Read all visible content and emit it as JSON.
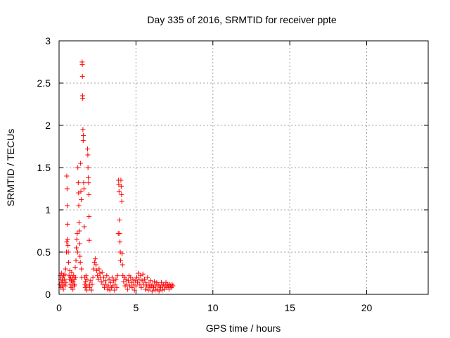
{
  "chart_data": {
    "type": "scatter",
    "title": "Day 335 of 2016, SRMTID for receiver ppte",
    "xlabel": "GPS time / hours",
    "ylabel": "SRMTID / TECUs",
    "xlim": [
      0,
      24
    ],
    "ylim": [
      0,
      3
    ],
    "xticks": [
      0,
      5,
      10,
      15,
      20
    ],
    "xtick_labels": [
      "0",
      "5",
      "10",
      "15",
      "20"
    ],
    "yticks": [
      0,
      0.5,
      1,
      1.5,
      2,
      2.5,
      3
    ],
    "ytick_labels": [
      "0",
      "0.5",
      "1",
      "1.5",
      "2",
      "2.5",
      "3"
    ],
    "grid": true,
    "marker": "+",
    "color": "#ff0000",
    "series": [
      {
        "name": "SRMTID",
        "points": [
          [
            0.05,
            0.12
          ],
          [
            0.08,
            0.22
          ],
          [
            0.1,
            0.18
          ],
          [
            0.12,
            0.08
          ],
          [
            0.15,
            0.25
          ],
          [
            0.18,
            0.14
          ],
          [
            0.2,
            0.1
          ],
          [
            0.22,
            0.2
          ],
          [
            0.25,
            0.16
          ],
          [
            0.28,
            0.06
          ],
          [
            0.3,
            0.22
          ],
          [
            0.32,
            0.12
          ],
          [
            0.35,
            0.18
          ],
          [
            0.38,
            0.24
          ],
          [
            0.4,
            0.1
          ],
          [
            0.42,
            0.3
          ],
          [
            0.45,
            0.14
          ],
          [
            0.48,
            0.5
          ],
          [
            0.5,
            0.62
          ],
          [
            0.5,
            1.4
          ],
          [
            0.52,
            1.25
          ],
          [
            0.53,
            1.05
          ],
          [
            0.55,
            0.83
          ],
          [
            0.56,
            0.65
          ],
          [
            0.58,
            0.58
          ],
          [
            0.6,
            0.5
          ],
          [
            0.62,
            0.38
          ],
          [
            0.65,
            0.22
          ],
          [
            0.68,
            0.18
          ],
          [
            0.7,
            0.28
          ],
          [
            0.72,
            0.12
          ],
          [
            0.75,
            0.2
          ],
          [
            0.78,
            0.08
          ],
          [
            0.8,
            0.16
          ],
          [
            0.82,
            0.26
          ],
          [
            0.85,
            0.12
          ],
          [
            0.88,
            0.2
          ],
          [
            0.9,
            0.06
          ],
          [
            0.92,
            0.15
          ],
          [
            0.95,
            0.22
          ],
          [
            0.98,
            0.1
          ],
          [
            1.0,
            0.18
          ],
          [
            1.02,
            0.12
          ],
          [
            1.05,
            0.32
          ],
          [
            1.08,
            0.2
          ],
          [
            1.1,
            0.4
          ],
          [
            1.12,
            0.55
          ],
          [
            1.15,
            0.65
          ],
          [
            1.18,
            0.72
          ],
          [
            1.2,
            0.5
          ],
          [
            1.22,
            1.5
          ],
          [
            1.25,
            1.32
          ],
          [
            1.27,
            1.2
          ],
          [
            1.28,
            1.05
          ],
          [
            1.3,
            0.85
          ],
          [
            1.32,
            0.75
          ],
          [
            1.34,
            0.6
          ],
          [
            1.36,
            0.45
          ],
          [
            1.38,
            0.38
          ],
          [
            1.4,
            1.55
          ],
          [
            1.42,
            1.22
          ],
          [
            1.44,
            1.12
          ],
          [
            1.46,
            0.3
          ],
          [
            1.48,
            0.2
          ],
          [
            1.5,
            2.75
          ],
          [
            1.51,
            2.72
          ],
          [
            1.52,
            2.58
          ],
          [
            1.53,
            2.35
          ],
          [
            1.54,
            2.32
          ],
          [
            1.55,
            1.95
          ],
          [
            1.57,
            1.82
          ],
          [
            1.58,
            1.88
          ],
          [
            1.6,
            1.32
          ],
          [
            1.62,
            1.25
          ],
          [
            1.64,
            0.8
          ],
          [
            1.66,
            0.2
          ],
          [
            1.68,
            0.12
          ],
          [
            1.7,
            0.08
          ],
          [
            1.72,
            0.15
          ],
          [
            1.75,
            0.22
          ],
          [
            1.78,
            0.1
          ],
          [
            1.8,
            0.05
          ],
          [
            1.82,
            0.18
          ],
          [
            1.85,
            1.72
          ],
          [
            1.87,
            1.65
          ],
          [
            1.88,
            1.5
          ],
          [
            1.9,
            1.38
          ],
          [
            1.92,
            1.32
          ],
          [
            1.94,
            1.18
          ],
          [
            1.95,
            0.92
          ],
          [
            1.96,
            0.64
          ],
          [
            1.98,
            0.12
          ],
          [
            2.0,
            0.08
          ],
          [
            2.05,
            0.16
          ],
          [
            2.1,
            0.05
          ],
          [
            2.15,
            0.12
          ],
          [
            2.2,
            0.2
          ],
          [
            2.25,
            0.3
          ],
          [
            2.3,
            0.38
          ],
          [
            2.35,
            0.42
          ],
          [
            2.4,
            0.35
          ],
          [
            2.45,
            0.28
          ],
          [
            2.5,
            0.22
          ],
          [
            2.55,
            0.18
          ],
          [
            2.6,
            0.3
          ],
          [
            2.65,
            0.25
          ],
          [
            2.7,
            0.2
          ],
          [
            2.75,
            0.15
          ],
          [
            2.8,
            0.26
          ],
          [
            2.85,
            0.12
          ],
          [
            2.9,
            0.2
          ],
          [
            2.95,
            0.08
          ],
          [
            3.0,
            0.16
          ],
          [
            3.05,
            0.12
          ],
          [
            3.1,
            0.22
          ],
          [
            3.15,
            0.06
          ],
          [
            3.2,
            0.1
          ],
          [
            3.25,
            0.18
          ],
          [
            3.3,
            0.05
          ],
          [
            3.35,
            0.14
          ],
          [
            3.4,
            0.08
          ],
          [
            3.45,
            0.2
          ],
          [
            3.5,
            0.1
          ],
          [
            3.55,
            0.16
          ],
          [
            3.6,
            0.05
          ],
          [
            3.65,
            0.12
          ],
          [
            3.7,
            0.18
          ],
          [
            3.75,
            0.08
          ],
          [
            3.8,
            0.22
          ],
          [
            3.85,
            0.72
          ],
          [
            3.87,
            1.35
          ],
          [
            3.88,
            1.3
          ],
          [
            3.9,
            1.22
          ],
          [
            3.92,
            0.88
          ],
          [
            3.94,
            0.72
          ],
          [
            3.96,
            0.62
          ],
          [
            3.98,
            0.5
          ],
          [
            4.0,
            0.4
          ],
          [
            4.02,
            1.35
          ],
          [
            4.04,
            1.28
          ],
          [
            4.06,
            1.18
          ],
          [
            4.08,
            1.1
          ],
          [
            4.1,
            0.48
          ],
          [
            4.12,
            0.35
          ],
          [
            4.15,
            0.22
          ],
          [
            4.2,
            0.15
          ],
          [
            4.25,
            0.2
          ],
          [
            4.3,
            0.1
          ],
          [
            4.35,
            0.18
          ],
          [
            4.4,
            0.12
          ],
          [
            4.45,
            0.06
          ],
          [
            4.5,
            0.16
          ],
          [
            4.55,
            0.22
          ],
          [
            4.6,
            0.1
          ],
          [
            4.65,
            0.2
          ],
          [
            4.7,
            0.14
          ],
          [
            4.75,
            0.08
          ],
          [
            4.8,
            0.18
          ],
          [
            4.85,
            0.12
          ],
          [
            4.9,
            0.05
          ],
          [
            4.95,
            0.16
          ],
          [
            5.0,
            0.1
          ],
          [
            5.05,
            0.2
          ],
          [
            5.1,
            0.14
          ],
          [
            5.15,
            0.25
          ],
          [
            5.2,
            0.18
          ],
          [
            5.25,
            0.12
          ],
          [
            5.3,
            0.22
          ],
          [
            5.35,
            0.08
          ],
          [
            5.4,
            0.16
          ],
          [
            5.45,
            0.24
          ],
          [
            5.5,
            0.12
          ],
          [
            5.55,
            0.18
          ],
          [
            5.6,
            0.06
          ],
          [
            5.65,
            0.14
          ],
          [
            5.7,
            0.1
          ],
          [
            5.75,
            0.2
          ],
          [
            5.8,
            0.05
          ],
          [
            5.85,
            0.12
          ],
          [
            5.9,
            0.08
          ],
          [
            5.95,
            0.16
          ],
          [
            6.0,
            0.1
          ],
          [
            6.05,
            0.04
          ],
          [
            6.1,
            0.12
          ],
          [
            6.15,
            0.08
          ],
          [
            6.2,
            0.15
          ],
          [
            6.25,
            0.05
          ],
          [
            6.3,
            0.1
          ],
          [
            6.35,
            0.14
          ],
          [
            6.4,
            0.06
          ],
          [
            6.45,
            0.12
          ],
          [
            6.5,
            0.04
          ],
          [
            6.55,
            0.1
          ],
          [
            6.6,
            0.08
          ],
          [
            6.65,
            0.14
          ],
          [
            6.7,
            0.05
          ],
          [
            6.75,
            0.1
          ],
          [
            6.8,
            0.12
          ],
          [
            6.85,
            0.06
          ],
          [
            6.9,
            0.1
          ],
          [
            6.95,
            0.14
          ],
          [
            7.0,
            0.08
          ],
          [
            7.05,
            0.12
          ],
          [
            7.1,
            0.1
          ],
          [
            7.15,
            0.06
          ],
          [
            7.2,
            0.12
          ],
          [
            7.25,
            0.1
          ],
          [
            7.3,
            0.08
          ],
          [
            7.35,
            0.12
          ],
          [
            7.4,
            0.1
          ]
        ]
      }
    ]
  }
}
